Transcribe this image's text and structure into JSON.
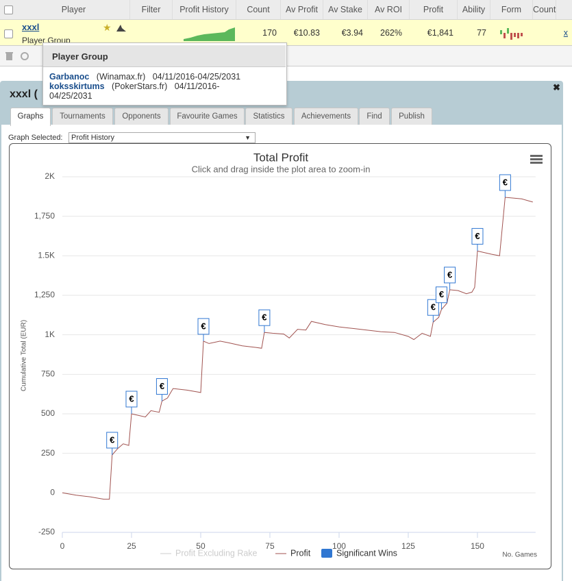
{
  "table": {
    "headers": [
      "Player",
      "Filter",
      "Profit History",
      "Count",
      "Av Profit",
      "Av Stake",
      "Av ROI",
      "Profit",
      "Ability",
      "Form",
      "Count"
    ],
    "rows": [
      {
        "player": "xxxl",
        "note": "Player Group",
        "count": "170",
        "av_profit": "€10.83",
        "av_stake": "€3.94",
        "av_roi": "262%",
        "profit": "€1,841",
        "ability": "77",
        "remove": "x"
      }
    ]
  },
  "popup": {
    "title": "Player Group",
    "members": [
      {
        "name": "Garbanoc",
        "site": "(Winamax.fr)",
        "dates": "04/11/2016-04/25/2031"
      },
      {
        "name": "koksskirtums",
        "site": "(PokerStars.fr)",
        "dates": "04/11/2016-04/25/2031"
      }
    ]
  },
  "panel": {
    "title": "xxxl (",
    "tabs": [
      "Graphs",
      "Tournaments",
      "Opponents",
      "Favourite Games",
      "Statistics",
      "Achievements",
      "Find",
      "Publish"
    ],
    "graph_selector": {
      "label": "Graph Selected:",
      "value": "Profit History"
    }
  },
  "chart_data": {
    "type": "line",
    "title": "Total Profit",
    "subtitle": "Click and drag inside the plot area to zoom-in",
    "y_label": "Cumulative Total (EUR)",
    "x_label": "No. Games",
    "xlim": [
      0,
      171
    ],
    "xticks": [
      0,
      25,
      50,
      75,
      100,
      125,
      150
    ],
    "ylim": [
      -250,
      2000
    ],
    "yticks": [
      -250,
      0,
      250,
      500,
      750,
      {
        "value": 1000,
        "label": "1K"
      },
      {
        "value": 1250,
        "label": "1,250"
      },
      {
        "value": 1500,
        "label": "1.5K"
      },
      {
        "value": 1750,
        "label": "1,750"
      },
      {
        "value": 2000,
        "label": "2K"
      }
    ],
    "grid": true,
    "series": [
      {
        "name": "Profit Excluding Rake",
        "color": "#cccccc",
        "hidden": true
      },
      {
        "name": "Profit",
        "color": "#a0524f",
        "x": [
          0,
          5,
          10,
          15,
          17,
          18,
          20,
          22,
          24,
          25,
          30,
          32,
          35,
          36,
          38,
          40,
          45,
          50,
          51,
          53,
          57,
          60,
          65,
          70,
          72,
          73,
          76,
          80,
          82,
          85,
          88,
          90,
          95,
          100,
          105,
          110,
          115,
          120,
          125,
          127,
          130,
          133,
          134,
          136,
          137,
          139,
          140,
          143,
          146,
          148,
          149,
          150,
          155,
          158,
          160,
          163,
          166,
          168,
          170
        ],
        "values": [
          0,
          -15,
          -25,
          -40,
          -40,
          240,
          280,
          310,
          300,
          500,
          480,
          520,
          510,
          580,
          600,
          660,
          650,
          635,
          960,
          945,
          960,
          950,
          930,
          920,
          915,
          1015,
          1010,
          1005,
          980,
          1035,
          1030,
          1085,
          1065,
          1050,
          1040,
          1030,
          1020,
          1015,
          990,
          970,
          1010,
          990,
          1080,
          1110,
          1160,
          1200,
          1285,
          1280,
          1260,
          1270,
          1300,
          1530,
          1510,
          1500,
          1870,
          1865,
          1860,
          1850,
          1840
        ]
      },
      {
        "name": "Significant Wins",
        "color": "#3077d2",
        "flags": true,
        "flag_label": "€",
        "x": [
          18,
          25,
          36,
          51,
          73,
          134,
          137,
          140,
          150,
          160
        ],
        "values": [
          240,
          500,
          580,
          960,
          1015,
          1080,
          1160,
          1285,
          1530,
          1870
        ]
      }
    ]
  }
}
